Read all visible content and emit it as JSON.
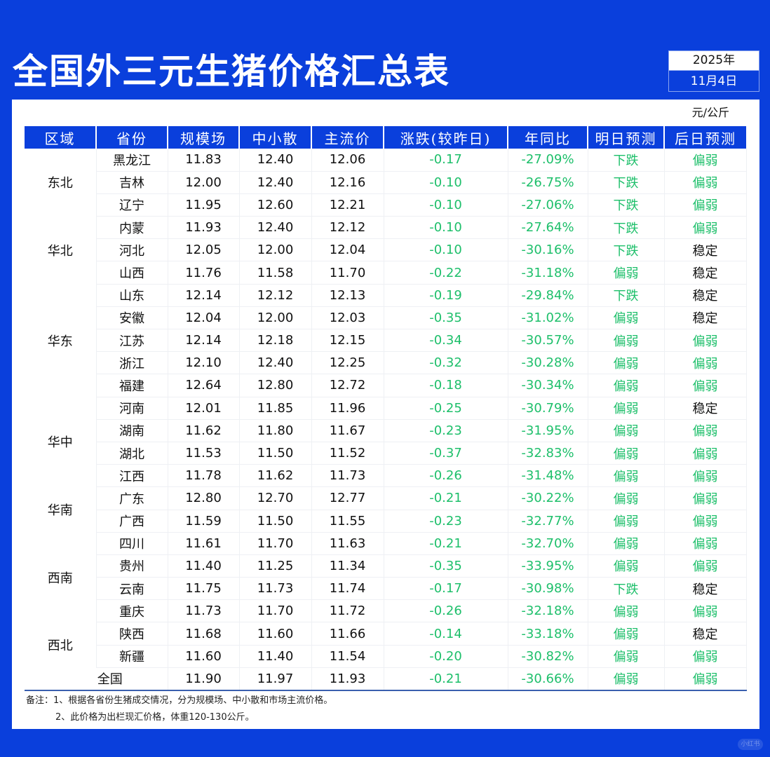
{
  "header": {
    "title": "全国外三元生猪价格汇总表",
    "year": "2025年",
    "date": "11月4日",
    "unit": "元/公斤"
  },
  "colors": {
    "brand_blue": "#0a3fdc",
    "green": "#1dbf6a",
    "dark_text": "#111111"
  },
  "table": {
    "columns": [
      "区域",
      "省份",
      "规模场",
      "中小散",
      "主流价",
      "涨跌(较昨日)",
      "年同比",
      "明日预测",
      "后日预测"
    ],
    "rows": [
      {
        "region": "东北",
        "province": "黑龙江",
        "large": "11.83",
        "small": "12.40",
        "main": "12.06",
        "change": "-0.17",
        "yoy": "-27.09%",
        "tomorrow": "下跌",
        "after": "偏弱"
      },
      {
        "region": "",
        "province": "吉林",
        "large": "12.00",
        "small": "12.40",
        "main": "12.16",
        "change": "-0.10",
        "yoy": "-26.75%",
        "tomorrow": "下跌",
        "after": "偏弱"
      },
      {
        "region": "",
        "province": "辽宁",
        "large": "11.95",
        "small": "12.60",
        "main": "12.21",
        "change": "-0.10",
        "yoy": "-27.06%",
        "tomorrow": "下跌",
        "after": "偏弱"
      },
      {
        "region": "华北",
        "province": "内蒙",
        "large": "11.93",
        "small": "12.40",
        "main": "12.12",
        "change": "-0.10",
        "yoy": "-27.64%",
        "tomorrow": "下跌",
        "after": "偏弱"
      },
      {
        "region": "",
        "province": "河北",
        "large": "12.05",
        "small": "12.00",
        "main": "12.04",
        "change": "-0.10",
        "yoy": "-30.16%",
        "tomorrow": "下跌",
        "after": "稳定"
      },
      {
        "region": "",
        "province": "山西",
        "large": "11.76",
        "small": "11.58",
        "main": "11.70",
        "change": "-0.22",
        "yoy": "-31.18%",
        "tomorrow": "偏弱",
        "after": "稳定"
      },
      {
        "region": "华东",
        "province": "山东",
        "large": "12.14",
        "small": "12.12",
        "main": "12.13",
        "change": "-0.19",
        "yoy": "-29.84%",
        "tomorrow": "下跌",
        "after": "稳定"
      },
      {
        "region": "",
        "province": "安徽",
        "large": "12.04",
        "small": "12.00",
        "main": "12.03",
        "change": "-0.35",
        "yoy": "-31.02%",
        "tomorrow": "偏弱",
        "after": "稳定"
      },
      {
        "region": "",
        "province": "江苏",
        "large": "12.14",
        "small": "12.18",
        "main": "12.15",
        "change": "-0.34",
        "yoy": "-30.57%",
        "tomorrow": "偏弱",
        "after": "偏弱"
      },
      {
        "region": "",
        "province": "浙江",
        "large": "12.10",
        "small": "12.40",
        "main": "12.25",
        "change": "-0.32",
        "yoy": "-30.28%",
        "tomorrow": "偏弱",
        "after": "偏弱"
      },
      {
        "region": "",
        "province": "福建",
        "large": "12.64",
        "small": "12.80",
        "main": "12.72",
        "change": "-0.18",
        "yoy": "-30.34%",
        "tomorrow": "偏弱",
        "after": "偏弱"
      },
      {
        "region": "华中",
        "province": "河南",
        "large": "12.01",
        "small": "11.85",
        "main": "11.96",
        "change": "-0.25",
        "yoy": "-30.79%",
        "tomorrow": "偏弱",
        "after": "稳定"
      },
      {
        "region": "",
        "province": "湖南",
        "large": "11.62",
        "small": "11.80",
        "main": "11.67",
        "change": "-0.23",
        "yoy": "-31.95%",
        "tomorrow": "偏弱",
        "after": "偏弱"
      },
      {
        "region": "",
        "province": "湖北",
        "large": "11.53",
        "small": "11.50",
        "main": "11.52",
        "change": "-0.37",
        "yoy": "-32.83%",
        "tomorrow": "偏弱",
        "after": "偏弱"
      },
      {
        "region": "",
        "province": "江西",
        "large": "11.78",
        "small": "11.62",
        "main": "11.73",
        "change": "-0.26",
        "yoy": "-31.48%",
        "tomorrow": "偏弱",
        "after": "偏弱"
      },
      {
        "region": "华南",
        "province": "广东",
        "large": "12.80",
        "small": "12.70",
        "main": "12.77",
        "change": "-0.21",
        "yoy": "-30.22%",
        "tomorrow": "偏弱",
        "after": "偏弱"
      },
      {
        "region": "",
        "province": "广西",
        "large": "11.59",
        "small": "11.50",
        "main": "11.55",
        "change": "-0.23",
        "yoy": "-32.77%",
        "tomorrow": "偏弱",
        "after": "偏弱"
      },
      {
        "region": "西南",
        "province": "四川",
        "large": "11.61",
        "small": "11.70",
        "main": "11.63",
        "change": "-0.21",
        "yoy": "-32.70%",
        "tomorrow": "偏弱",
        "after": "偏弱"
      },
      {
        "region": "",
        "province": "贵州",
        "large": "11.40",
        "small": "11.25",
        "main": "11.34",
        "change": "-0.35",
        "yoy": "-33.95%",
        "tomorrow": "偏弱",
        "after": "偏弱"
      },
      {
        "region": "",
        "province": "云南",
        "large": "11.75",
        "small": "11.73",
        "main": "11.74",
        "change": "-0.17",
        "yoy": "-30.98%",
        "tomorrow": "下跌",
        "after": "稳定"
      },
      {
        "region": "",
        "province": "重庆",
        "large": "11.73",
        "small": "11.70",
        "main": "11.72",
        "change": "-0.26",
        "yoy": "-32.18%",
        "tomorrow": "偏弱",
        "after": "偏弱"
      },
      {
        "region": "西北",
        "province": "陕西",
        "large": "11.68",
        "small": "11.60",
        "main": "11.66",
        "change": "-0.14",
        "yoy": "-33.18%",
        "tomorrow": "偏弱",
        "after": "稳定"
      },
      {
        "region": "",
        "province": "新疆",
        "large": "11.60",
        "small": "11.40",
        "main": "11.54",
        "change": "-0.20",
        "yoy": "-30.82%",
        "tomorrow": "偏弱",
        "after": "偏弱"
      }
    ],
    "regions": [
      {
        "name": "东北",
        "rows": 3
      },
      {
        "name": "华北",
        "rows": 3
      },
      {
        "name": "华东",
        "rows": 5
      },
      {
        "name": "华中",
        "rows": 4
      },
      {
        "name": "华南",
        "rows": 2
      },
      {
        "name": "西南",
        "rows": 4
      },
      {
        "name": "西北",
        "rows": 2
      }
    ],
    "total": {
      "label": "全国",
      "large": "11.90",
      "small": "11.97",
      "main": "11.93",
      "change": "-0.21",
      "yoy": "-30.66%",
      "tomorrow": "偏弱",
      "after": "偏弱"
    }
  },
  "notes": {
    "line1": "备注：1、根据各省份生猪成交情况，分为规模场、中小散和市场主流价格。",
    "line2": "2、此价格为出栏现汇价格，体重120-130公斤。"
  },
  "watermark": "小红书"
}
